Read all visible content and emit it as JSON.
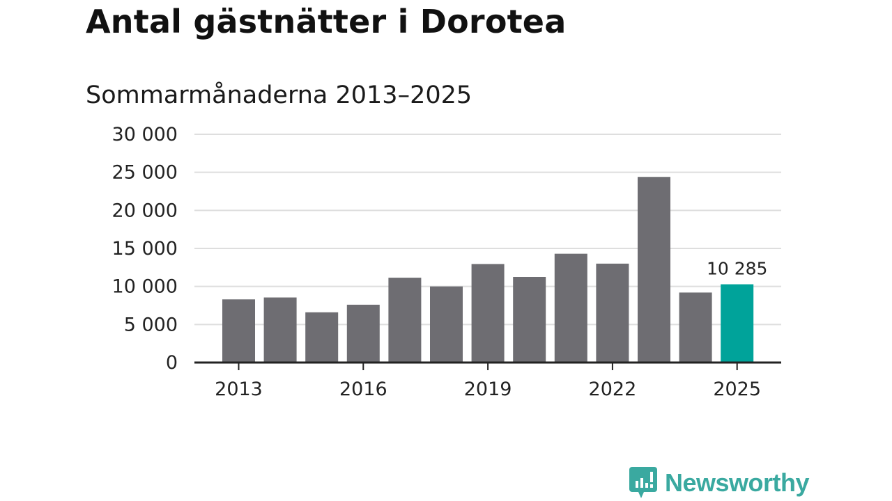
{
  "title": "Antal gästnätter i Dorotea",
  "subtitle": "Sommarmånaderna 2013–2025",
  "brand": {
    "name": "Newsworthy",
    "color": "#3aa9a0",
    "icon": "newsworthy-logo-icon"
  },
  "colors": {
    "bar": "#6e6d72",
    "highlight": "#00a39a",
    "grid": "#dedede",
    "axis": "#222222"
  },
  "chart_data": {
    "type": "bar",
    "categories": [
      "2013",
      "2014",
      "2015",
      "2016",
      "2017",
      "2018",
      "2019",
      "2020",
      "2021",
      "2022",
      "2023",
      "2024",
      "2025"
    ],
    "values": [
      8300,
      8550,
      6600,
      7600,
      11150,
      10000,
      12950,
      11250,
      14300,
      13000,
      24400,
      9200,
      10285
    ],
    "highlight_index": 12,
    "ylim": [
      0,
      30000
    ],
    "yticks": [
      0,
      5000,
      10000,
      15000,
      20000,
      25000,
      30000
    ],
    "ytick_labels": [
      "0",
      "5 000",
      "10 000",
      "15 000",
      "20 000",
      "25 000",
      "30 000"
    ],
    "xtick_labels": [
      "2013",
      "2016",
      "2019",
      "2022",
      "2025"
    ],
    "data_labels": [
      {
        "index": 12,
        "text": "10 285"
      }
    ],
    "grid": true,
    "xlabel": "",
    "ylabel": ""
  }
}
